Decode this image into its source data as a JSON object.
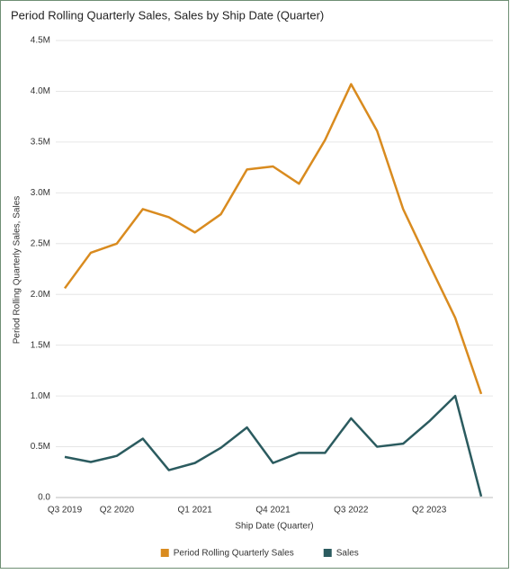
{
  "chart_data": {
    "type": "line",
    "title": "Period Rolling Quarterly Sales, Sales by Ship Date (Quarter)",
    "x_label": "Ship Date (Quarter)",
    "y_label": "Period Rolling Quarterly Sales, Sales",
    "categories": [
      "Q3 2019",
      null,
      "Q2 2020",
      null,
      null,
      "Q1 2021",
      null,
      null,
      "Q4 2021",
      null,
      null,
      "Q3 2022",
      null,
      null,
      "Q2 2023",
      null,
      null
    ],
    "series": [
      {
        "name": "Period Rolling Quarterly Sales",
        "color": "#d98b1f",
        "values": [
          2060000,
          2410000,
          2500000,
          2840000,
          2760000,
          2610000,
          2790000,
          3230000,
          3260000,
          3090000,
          3520000,
          4070000,
          3610000,
          2840000,
          2300000,
          1770000,
          1020000
        ]
      },
      {
        "name": "Sales",
        "color": "#2b5b5f",
        "values": [
          400000,
          350000,
          410000,
          580000,
          270000,
          340000,
          490000,
          690000,
          340000,
          440000,
          440000,
          780000,
          500000,
          530000,
          750000,
          1000000,
          10000
        ]
      }
    ],
    "ylim": [
      0,
      4500000
    ],
    "yticks": [
      {
        "value": 0,
        "label": "0.0"
      },
      {
        "value": 500000,
        "label": "0.5M"
      },
      {
        "value": 1000000,
        "label": "1.0M"
      },
      {
        "value": 1500000,
        "label": "1.5M"
      },
      {
        "value": 2000000,
        "label": "2.0M"
      },
      {
        "value": 2500000,
        "label": "2.5M"
      },
      {
        "value": 3000000,
        "label": "3.0M"
      },
      {
        "value": 3500000,
        "label": "3.5M"
      },
      {
        "value": 4000000,
        "label": "4.0M"
      },
      {
        "value": 4500000,
        "label": "4.5M"
      }
    ],
    "grid": true,
    "legend": "bottom"
  }
}
